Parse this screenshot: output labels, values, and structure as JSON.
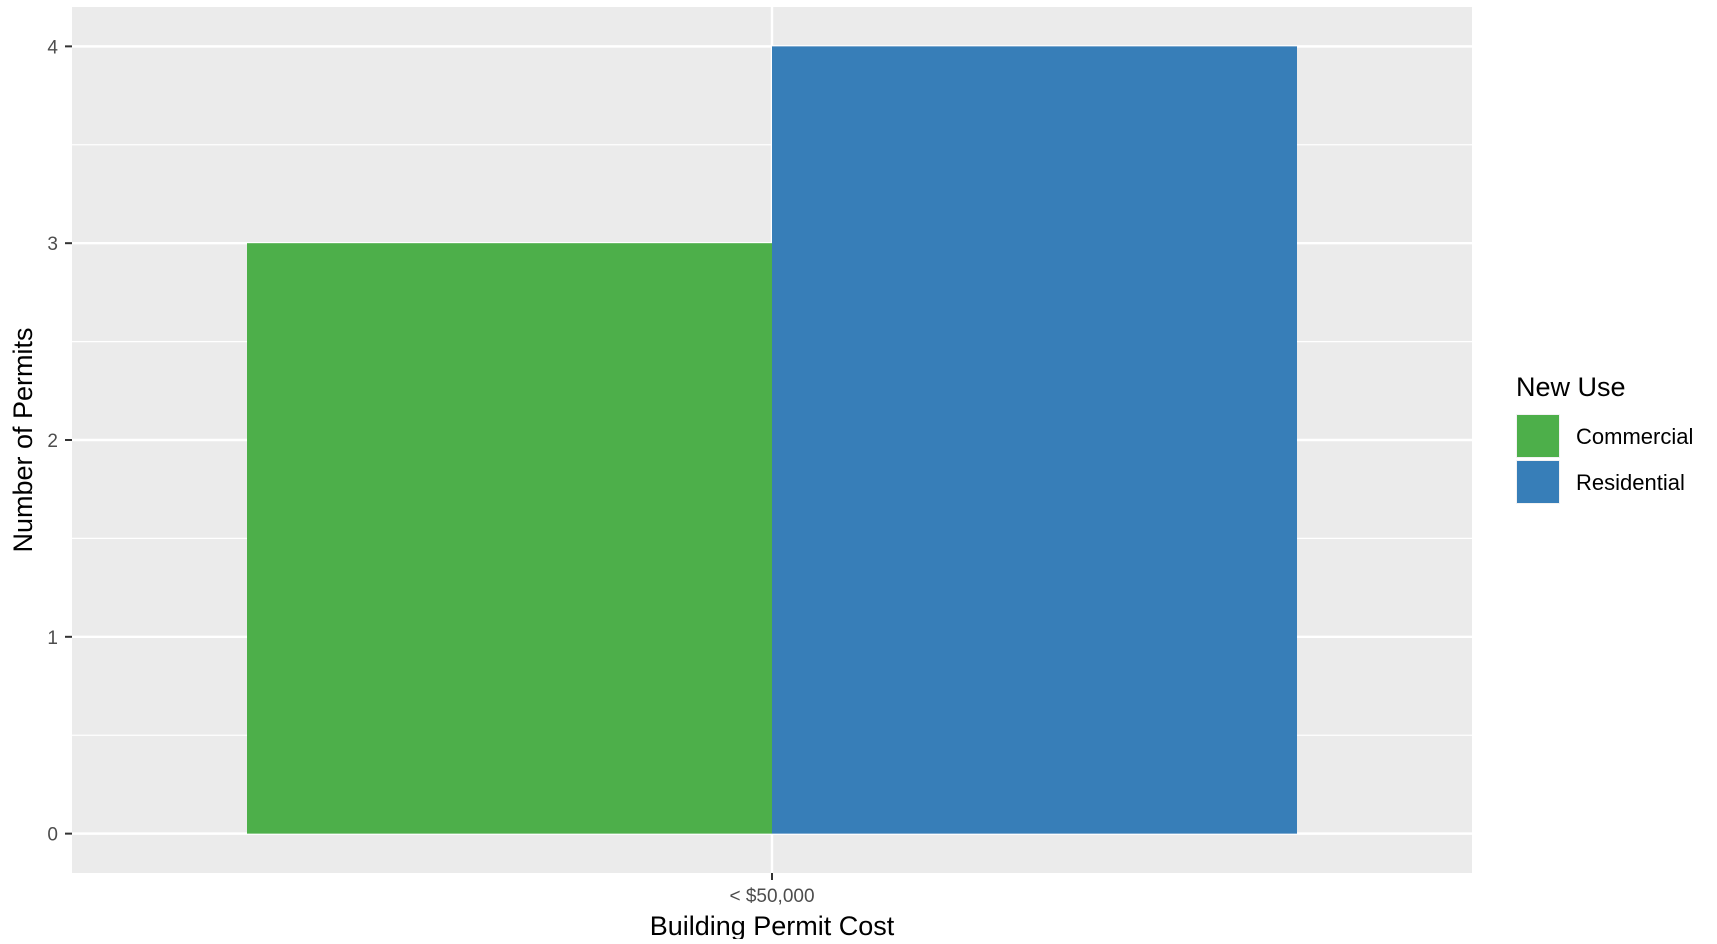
{
  "chart_data": {
    "type": "bar",
    "title": "",
    "xlabel": "Building Permit Cost",
    "ylabel": "Number of Permits",
    "categories": [
      "< $50,000"
    ],
    "series": [
      {
        "name": "Commercial",
        "values": [
          3
        ],
        "color": "#4daf4a"
      },
      {
        "name": "Residential",
        "values": [
          4
        ],
        "color": "#377eb8"
      }
    ],
    "ylim": [
      -0.2,
      4.2
    ],
    "yticks": [
      0,
      1,
      2,
      3,
      4
    ],
    "grid": true,
    "panel_background": "#ebebeb",
    "grid_color": "#ffffff",
    "legend": {
      "title": "New Use",
      "placement": "right",
      "items": [
        "Commercial",
        "Residential"
      ]
    }
  }
}
